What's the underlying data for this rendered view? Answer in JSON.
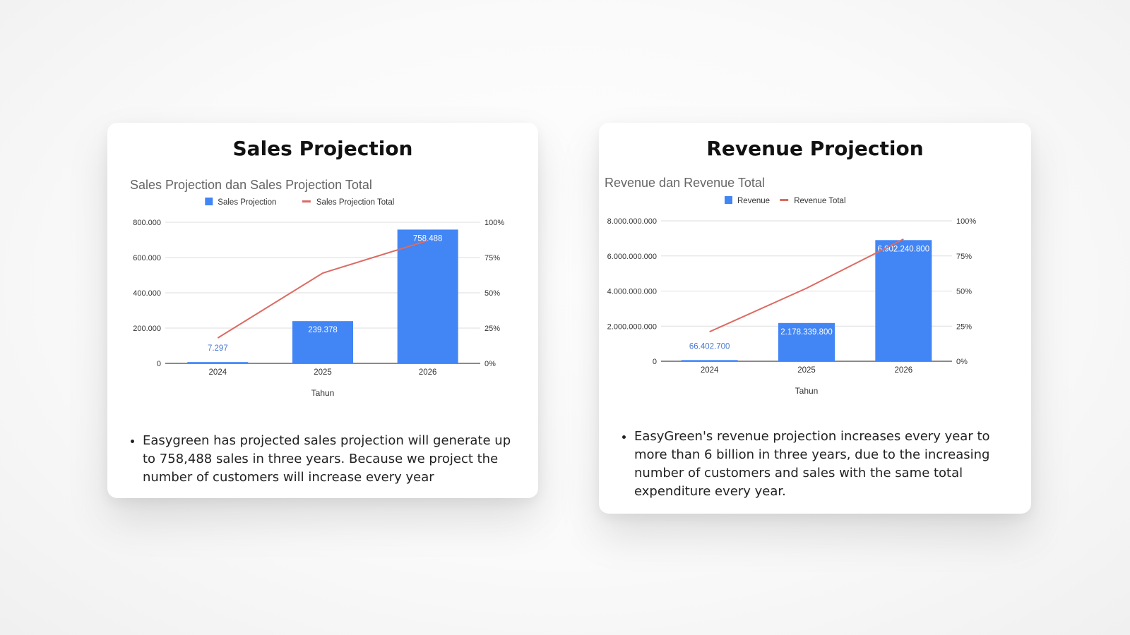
{
  "cards": {
    "sales": {
      "title": "Sales Projection",
      "bullet": "Easygreen has projected sales projection will generate up to 758,488 sales in three years. Because we project the number of customers will increase every year"
    },
    "revenue": {
      "title": "Revenue Projection",
      "bullet": "EasyGreen's revenue projection increases every year to more than 6 billion in three years, due to the increasing number of customers and sales with the same total expenditure every year."
    }
  },
  "chart_data": [
    {
      "type": "bar",
      "title": "Sales Projection dan  Sales Projection  Total",
      "xlabel": "Tahun",
      "categories": [
        "2024",
        "2025",
        "2026"
      ],
      "series": [
        {
          "name": "Sales Projection",
          "type": "bar",
          "axis": "left",
          "values": [
            7297,
            239378,
            758488
          ],
          "labels": [
            "7.297",
            "239.378",
            "758.488"
          ],
          "color": "#4285f4"
        },
        {
          "name": "Sales Projection  Total",
          "type": "line",
          "axis": "right",
          "values": [
            0.18,
            0.64,
            0.87
          ],
          "color": "#db6b63"
        }
      ],
      "ylim_left": [
        0,
        800000
      ],
      "yticks_left": [
        "0",
        "200.000",
        "400.000",
        "600.000",
        "800.000"
      ],
      "ylim_right": [
        0,
        1
      ],
      "yticks_right": [
        "0%",
        "25%",
        "50%",
        "75%",
        "100%"
      ],
      "legend": "top",
      "grid": true
    },
    {
      "type": "bar",
      "title": "Revenue dan Revenue Total",
      "xlabel": "Tahun",
      "categories": [
        "2024",
        "2025",
        "2026"
      ],
      "series": [
        {
          "name": "Revenue",
          "type": "bar",
          "axis": "left",
          "values": [
            66402700,
            2178339800,
            6902240800
          ],
          "labels": [
            "66.402.700",
            "2.178.339.800",
            "6.902.240.800"
          ],
          "color": "#4285f4"
        },
        {
          "name": "Revenue Total",
          "type": "line",
          "axis": "right",
          "values": [
            0.21,
            0.52,
            0.87
          ],
          "color": "#db6b63"
        }
      ],
      "ylim_left": [
        0,
        8000000000
      ],
      "yticks_left": [
        "0",
        "2.000.000.000",
        "4.000.000.000",
        "6.000.000.000",
        "8.000.000.000"
      ],
      "ylim_right": [
        0,
        1
      ],
      "yticks_right": [
        "0%",
        "25%",
        "50%",
        "75%",
        "100%"
      ],
      "legend": "top",
      "grid": true
    }
  ]
}
